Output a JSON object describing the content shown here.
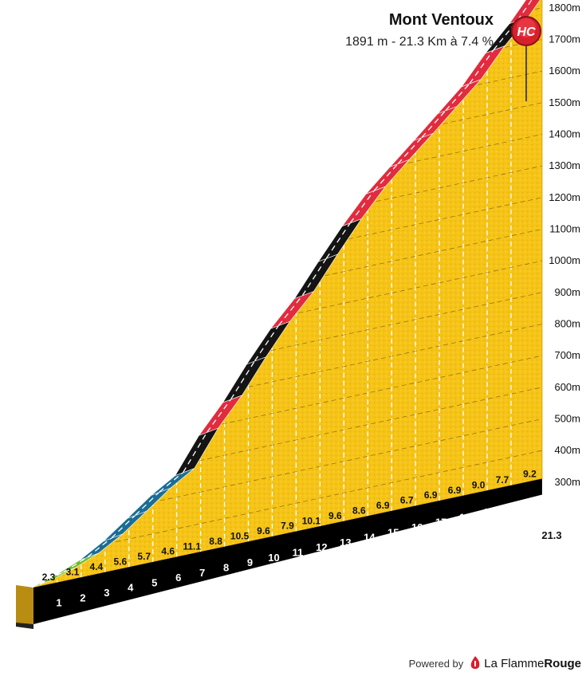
{
  "header": {
    "title": "Mont Ventoux",
    "stats": "1891 m - 21.3 Km à 7.4 %",
    "category_badge": "HC"
  },
  "footer": {
    "powered_by": "Powered by",
    "brand_plain": "La Flamme",
    "brand_bold": "Rouge",
    "logo_icon": "flame-logo-icon"
  },
  "colors": {
    "profile_fill": "#f5c417",
    "grade_green": "#6dbb2c",
    "grade_blue": "#1a6d96",
    "grade_black": "#141414",
    "grade_red": "#e22b3e",
    "badge_red": "#d8202c",
    "base": "#000000"
  },
  "chart_data": {
    "type": "area",
    "title": "Mont Ventoux",
    "subtitle": "1891 m - 21.3 Km à 7.4 %",
    "x_unit": "km",
    "y_unit": "m",
    "x": [
      0,
      1,
      2,
      3,
      4,
      5,
      6,
      7,
      8,
      9,
      10,
      11,
      12,
      13,
      14,
      15,
      16,
      17,
      18,
      19,
      20,
      21.3
    ],
    "elevation_m": [
      0,
      23,
      54,
      98,
      154,
      211,
      257,
      368,
      456,
      561,
      657,
      736,
      837,
      933,
      1019,
      1088,
      1155,
      1224,
      1293,
      1383,
      1460,
      1580
    ],
    "km_grades": [
      {
        "km": 1,
        "grade": 2.3,
        "label": "2.3",
        "color": "green"
      },
      {
        "km": 2,
        "grade": 3.1,
        "label": "3.1",
        "color": "green"
      },
      {
        "km": 3,
        "grade": 4.4,
        "label": "4.4",
        "color": "blue"
      },
      {
        "km": 4,
        "grade": 5.6,
        "label": "5.6",
        "color": "blue"
      },
      {
        "km": 5,
        "grade": 5.7,
        "label": "5.7",
        "color": "blue"
      },
      {
        "km": 6,
        "grade": 4.6,
        "label": "4.6",
        "color": "blue"
      },
      {
        "km": 7,
        "grade": 11.1,
        "label": "11.1",
        "color": "black"
      },
      {
        "km": 8,
        "grade": 8.8,
        "label": "8.8",
        "color": "red"
      },
      {
        "km": 9,
        "grade": 10.5,
        "label": "10.5",
        "color": "black"
      },
      {
        "km": 10,
        "grade": 9.6,
        "label": "9.6",
        "color": "black"
      },
      {
        "km": 11,
        "grade": 7.9,
        "label": "7.9",
        "color": "red"
      },
      {
        "km": 12,
        "grade": 10.1,
        "label": "10.1",
        "color": "black"
      },
      {
        "km": 13,
        "grade": 9.6,
        "label": "9.6",
        "color": "black"
      },
      {
        "km": 14,
        "grade": 8.6,
        "label": "8.6",
        "color": "red"
      },
      {
        "km": 15,
        "grade": 6.9,
        "label": "6.9",
        "color": "red"
      },
      {
        "km": 16,
        "grade": 6.7,
        "label": "6.7",
        "color": "red"
      },
      {
        "km": 17,
        "grade": 6.9,
        "label": "6.9",
        "color": "red"
      },
      {
        "km": 18,
        "grade": 6.9,
        "label": "6.9",
        "color": "red"
      },
      {
        "km": 19,
        "grade": 9.0,
        "label": "9.0",
        "color": "red"
      },
      {
        "km": 20,
        "grade": 7.7,
        "label": "7.7",
        "color": "black"
      },
      {
        "km": 21.3,
        "grade": 9.2,
        "label": "9.2",
        "color": "red"
      }
    ],
    "x_tick_labels": [
      "1",
      "2",
      "3",
      "4",
      "5",
      "6",
      "7",
      "8",
      "9",
      "10",
      "11",
      "12",
      "13",
      "14",
      "15",
      "16",
      "17",
      "18",
      "19",
      "20"
    ],
    "x_end_label": "21.3",
    "y_tick_values": [
      300,
      400,
      500,
      600,
      700,
      800,
      900,
      1000,
      1100,
      1200,
      1300,
      1400,
      1500,
      1600,
      1700,
      1800
    ],
    "y_tick_labels": [
      "300m",
      "400m",
      "500m",
      "600m",
      "700m",
      "800m",
      "900m",
      "1000m",
      "1100m",
      "1200m",
      "1300m",
      "1400m",
      "1500m",
      "1600m",
      "1700m",
      "1800m"
    ],
    "grid": true,
    "legend": "none"
  }
}
